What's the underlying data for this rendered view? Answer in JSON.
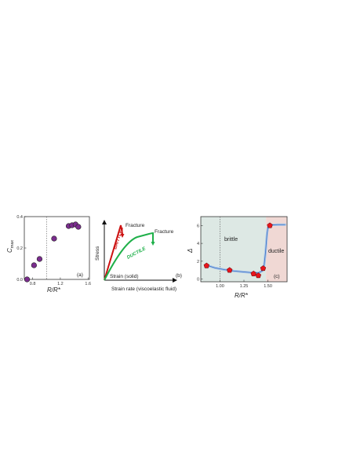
{
  "chart_data": [
    {
      "type": "scatter",
      "panel_label": "(a)",
      "xlabel": "R/R*",
      "ylabel": "C",
      "ylabel_sub": "max",
      "xlim": [
        0.68,
        1.62
      ],
      "ylim": [
        0.0,
        0.4
      ],
      "xticks": [
        {
          "v": 0.8,
          "label": "0.8"
        },
        {
          "v": 1.2,
          "label": "1.2"
        },
        {
          "v": 1.6,
          "label": "1.6"
        }
      ],
      "yticks": [
        {
          "v": 0.0,
          "label": "0.0"
        },
        {
          "v": 0.2,
          "label": "0.2"
        },
        {
          "v": 0.4,
          "label": "0.4"
        }
      ],
      "vline": 1.0,
      "marker_color": "#7b2d8e",
      "points": [
        {
          "x": 0.72,
          "y": 0.0
        },
        {
          "x": 0.82,
          "y": 0.09
        },
        {
          "x": 0.9,
          "y": 0.13
        },
        {
          "x": 1.11,
          "y": 0.26
        },
        {
          "x": 1.32,
          "y": 0.34
        },
        {
          "x": 1.37,
          "y": 0.345
        },
        {
          "x": 1.42,
          "y": 0.35
        },
        {
          "x": 1.46,
          "y": 0.335
        }
      ]
    },
    {
      "type": "line",
      "panel_label": "(b)",
      "ylabel": "Stress",
      "xlabel_1": "Strain (solid)",
      "xlabel_2": "Strain rate (viscoelastic fluid)",
      "brittle_label": "BRITTLE",
      "ductile_label": "DUCTILE",
      "fracture_label_1": "Fracture",
      "fracture_label_2": "Fracture",
      "brittle_color": "#cc1111",
      "ductile_color": "#1fb04a"
    },
    {
      "type": "scatter",
      "panel_label": "(c)",
      "xlabel": "R/R*",
      "ylabel": "Δ",
      "xlim": [
        0.8,
        1.7
      ],
      "ylim": [
        -0.3,
        7.0
      ],
      "xticks": [
        {
          "v": 1.0,
          "label": "1.00"
        },
        {
          "v": 1.25,
          "label": "1.25"
        },
        {
          "v": 1.5,
          "label": "1.50"
        }
      ],
      "yticks": [
        {
          "v": 0,
          "label": "0"
        },
        {
          "v": 2,
          "label": "2"
        },
        {
          "v": 4,
          "label": "4"
        },
        {
          "v": 6,
          "label": "6"
        }
      ],
      "vline": 1.0,
      "transition": 1.48,
      "region_left_label": "brittle",
      "region_right_label": "ductile",
      "region_left_color": "#dde8e4",
      "region_right_color": "#f0d8d4",
      "marker_color": "#e8141c",
      "points": [
        {
          "x": 0.86,
          "y": 1.5
        },
        {
          "x": 1.1,
          "y": 1.0
        },
        {
          "x": 1.35,
          "y": 0.6
        },
        {
          "x": 1.4,
          "y": 0.4
        },
        {
          "x": 1.45,
          "y": 1.2
        },
        {
          "x": 1.52,
          "y": 6.0
        }
      ],
      "fit_x": [
        0.86,
        0.95,
        1.05,
        1.15,
        1.25,
        1.33,
        1.4,
        1.44,
        1.46,
        1.475,
        1.49,
        1.5,
        1.52,
        1.6,
        1.68
      ],
      "fit_y": [
        1.55,
        1.25,
        1.05,
        0.9,
        0.8,
        0.72,
        0.7,
        0.9,
        1.5,
        3.0,
        5.0,
        5.8,
        6.05,
        6.1,
        6.1
      ]
    }
  ]
}
